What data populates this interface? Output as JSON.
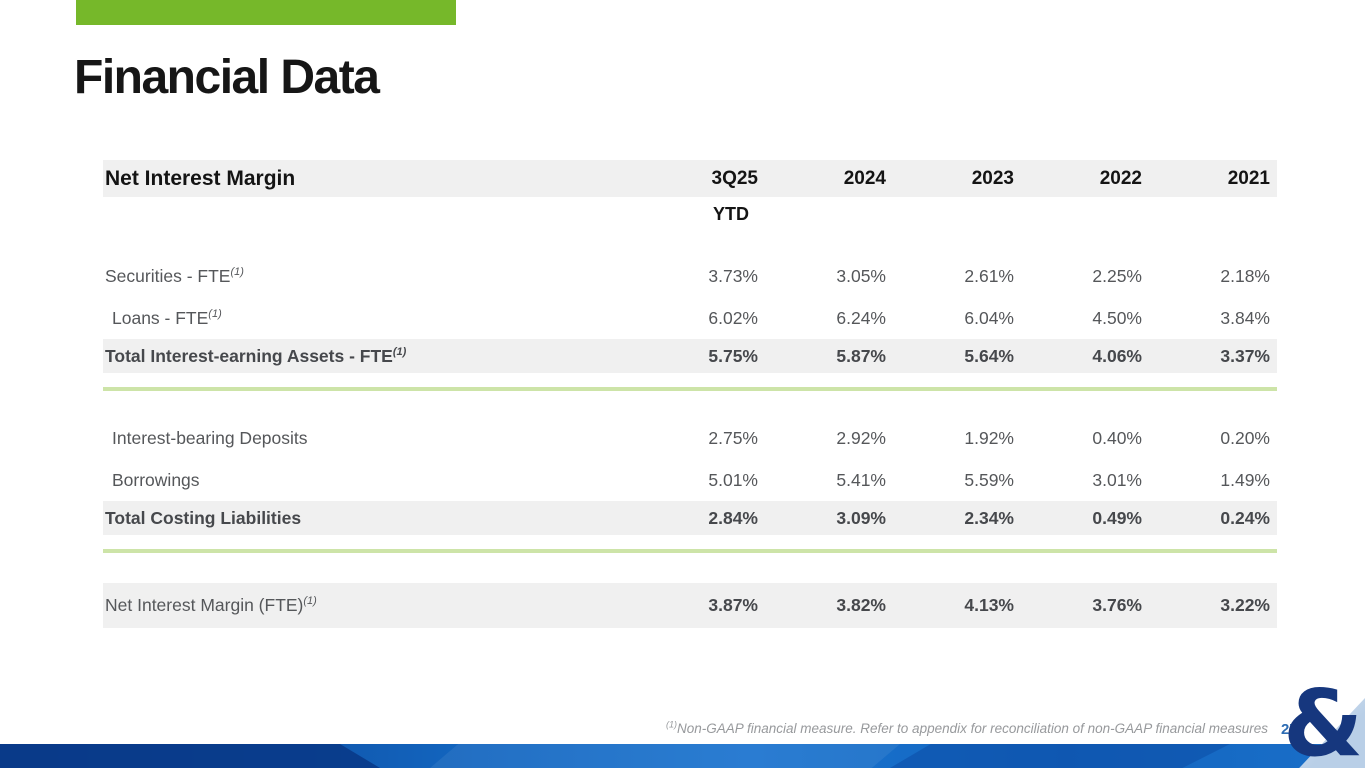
{
  "slide": {
    "title": "Financial Data",
    "page_number": "27",
    "footnote_sup": "(1)",
    "footnote_text": "Non-GAAP financial measure. Refer to appendix for reconciliation of non-GAAP financial measures",
    "logo_glyph": "&"
  },
  "colors": {
    "accent_green": "#76b82a",
    "divider_green": "#cde4a8",
    "row_shade": "#f0f0f0",
    "title_text": "#161616",
    "header_text": "#141414",
    "body_text": "#55575a",
    "bold_text": "#46484c",
    "footnote_gray": "#97999c",
    "page_number_blue": "#2e6db4",
    "logo_blue": "#16377e",
    "footer_blue_dark": "#0a3c8d",
    "footer_blue_bright": "#1a73cf"
  },
  "table": {
    "title": "Net Interest Margin",
    "columns": [
      "3Q25",
      "2024",
      "2023",
      "2022",
      "2021"
    ],
    "period_note": "YTD",
    "rows": [
      {
        "style": "normal",
        "indent": 0,
        "label": "Securities - FTE",
        "sup": "(1)",
        "values": [
          "3.73%",
          "3.05%",
          "2.61%",
          "2.25%",
          "2.18%"
        ]
      },
      {
        "style": "normal",
        "indent": 1,
        "label": "Loans - FTE",
        "sup": "(1)",
        "values": [
          "6.02%",
          "6.24%",
          "6.04%",
          "4.50%",
          "3.84%"
        ]
      },
      {
        "style": "total",
        "indent": 0,
        "label": "Total Interest-earning Assets - FTE",
        "sup": "(1)",
        "values": [
          "5.75%",
          "5.87%",
          "5.64%",
          "4.06%",
          "3.37%"
        ]
      },
      {
        "style": "divider"
      },
      {
        "style": "normal",
        "indent": 1,
        "label": "Interest-bearing Deposits",
        "sup": "",
        "values": [
          "2.75%",
          "2.92%",
          "1.92%",
          "0.40%",
          "0.20%"
        ]
      },
      {
        "style": "normal",
        "indent": 1,
        "label": "Borrowings",
        "sup": "",
        "values": [
          "5.01%",
          "5.41%",
          "5.59%",
          "3.01%",
          "1.49%"
        ]
      },
      {
        "style": "total",
        "indent": 0,
        "label": "Total Costing Liabilities",
        "sup": "",
        "values": [
          "2.84%",
          "3.09%",
          "2.34%",
          "0.49%",
          "0.24%"
        ]
      },
      {
        "style": "divider"
      },
      {
        "style": "nim",
        "indent": 0,
        "label": "Net Interest Margin (FTE)",
        "sup": "(1)",
        "values": [
          "3.87%",
          "3.82%",
          "4.13%",
          "3.76%",
          "3.22%"
        ]
      }
    ]
  }
}
